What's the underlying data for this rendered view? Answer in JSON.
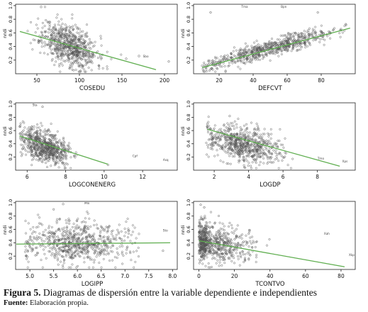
{
  "figure": {
    "caption_label": "Figura 5.",
    "caption_text": " Diagramas de dispersión entre la variable dependiente e independientes",
    "source_label": "Fuente:",
    "source_text": " Elaboración propia."
  },
  "colors": {
    "points": "#555555",
    "trend": "#5fae4f",
    "axis": "#222222",
    "text": "#111111"
  },
  "chart_data": [
    {
      "type": "scatter",
      "xlabel": "COSEDU",
      "ylabel": "nndi",
      "xlim": [
        25,
        215
      ],
      "ylim": [
        0,
        1.02
      ],
      "xticks": [
        50,
        100,
        150,
        200
      ],
      "yticks": [
        0.2,
        0.4,
        0.6,
        0.8,
        1.0
      ],
      "cloud": {
        "cx": 88,
        "sx": 16,
        "cy": 0.42,
        "sy": 0.15,
        "slope": -0.0045,
        "n": 700,
        "xmin": 30,
        "xmax": 150,
        "seed": 11
      },
      "trend": {
        "x": [
          30,
          190
        ],
        "y": [
          0.62,
          0.06
        ]
      },
      "outliers": [
        {
          "x": 205,
          "y": 0.18,
          "label": "Dhx"
        },
        {
          "x": 155,
          "y": 0.22,
          "label": ""
        },
        {
          "x": 170,
          "y": 0.26,
          "label": ""
        },
        {
          "x": 55,
          "y": 0.98,
          "label": ""
        }
      ],
      "labeled_points": [
        {
          "x": 178,
          "y": 0.24,
          "label": "Sbo"
        }
      ]
    },
    {
      "type": "scatter",
      "xlabel": "DEFCVT",
      "ylabel": "nndi",
      "xlim": [
        5,
        100
      ],
      "ylim": [
        0,
        1.02
      ],
      "xticks": [
        20,
        40,
        60,
        80
      ],
      "yticks": [
        0.2,
        0.4,
        0.6,
        0.8,
        1.0
      ],
      "cloud": {
        "cx": 50,
        "sx": 20,
        "cy": 0.37,
        "sy": 0.06,
        "slope": 0.0068,
        "n": 700,
        "xmin": 10,
        "xmax": 95,
        "seed": 23
      },
      "trend": {
        "x": [
          10,
          97
        ],
        "y": [
          0.09,
          0.67
        ]
      },
      "outliers": [
        {
          "x": 78,
          "y": 0.9,
          "label": ""
        },
        {
          "x": 15,
          "y": 0.9,
          "label": ""
        }
      ],
      "labeled_points": [
        {
          "x": 35,
          "y": 0.97,
          "label": "Tma"
        },
        {
          "x": 58,
          "y": 0.97,
          "label": "Bpn"
        }
      ]
    },
    {
      "type": "scatter",
      "xlabel": "LOGCONENERG",
      "ylabel": "nndi",
      "xlim": [
        5.4,
        13.8
      ],
      "ylim": [
        0,
        1.02
      ],
      "xticks": [
        6,
        8,
        10,
        12
      ],
      "yticks": [
        0.2,
        0.4,
        0.6,
        0.8,
        1.0
      ],
      "cloud": {
        "cx": 6.9,
        "sx": 0.6,
        "cy": 0.37,
        "sy": 0.12,
        "slope": -0.09,
        "n": 700,
        "xmin": 5.6,
        "xmax": 9.8,
        "seed": 37
      },
      "trend": {
        "x": [
          5.6,
          10.2
        ],
        "y": [
          0.52,
          0.09
        ]
      },
      "outliers": [
        {
          "x": 10.2,
          "y": 0.08,
          "label": ""
        },
        {
          "x": 6.8,
          "y": 0.96,
          "label": ""
        }
      ],
      "labeled_points": [
        {
          "x": 11.6,
          "y": 0.2,
          "label": "Cpf"
        },
        {
          "x": 13.2,
          "y": 0.14,
          "label": "Asq"
        },
        {
          "x": 6.4,
          "y": 0.97,
          "label": "Sta"
        }
      ]
    },
    {
      "type": "scatter",
      "xlabel": "LOGDP",
      "ylabel": "nndi",
      "xlim": [
        0.8,
        10.2
      ],
      "ylim": [
        0,
        1.02
      ],
      "xticks": [
        2,
        4,
        6,
        8
      ],
      "yticks": [
        0.2,
        0.4,
        0.6,
        0.8,
        1.0
      ],
      "cloud": {
        "cx": 3.8,
        "sx": 1.1,
        "cy": 0.38,
        "sy": 0.13,
        "slope": -0.05,
        "n": 700,
        "xmin": 1.5,
        "xmax": 8,
        "seed": 53
      },
      "trend": {
        "x": [
          1.6,
          9.3
        ],
        "y": [
          0.62,
          0.06
        ]
      },
      "outliers": [
        {
          "x": 2.9,
          "y": 0.82,
          "label": ""
        },
        {
          "x": 1.6,
          "y": 0.7,
          "label": ""
        }
      ],
      "labeled_points": [
        {
          "x": 8.2,
          "y": 0.16,
          "label": "Tmo"
        },
        {
          "x": 9.6,
          "y": 0.12,
          "label": "Xps"
        }
      ]
    },
    {
      "type": "scatter",
      "xlabel": "LOGIPP",
      "ylabel": "nndi",
      "xlim": [
        4.7,
        8.1
      ],
      "ylim": [
        0,
        1.02
      ],
      "xticks": [
        5.0,
        5.5,
        6.0,
        6.5,
        7.0,
        7.5,
        8.0
      ],
      "yticks": [
        0.2,
        0.4,
        0.6,
        0.8,
        1.0
      ],
      "cloud": {
        "cx": 6.0,
        "sx": 0.55,
        "cy": 0.4,
        "sy": 0.16,
        "slope": 0.0,
        "n": 700,
        "xmin": 4.9,
        "xmax": 7.4,
        "seed": 71
      },
      "trend": {
        "x": [
          4.7,
          7.95
        ],
        "y": [
          0.38,
          0.4
        ]
      },
      "outliers": [
        {
          "x": 5.5,
          "y": 0.9,
          "label": ""
        },
        {
          "x": 7.8,
          "y": 0.28,
          "label": ""
        },
        {
          "x": 5.7,
          "y": 0.98,
          "label": ""
        }
      ],
      "labeled_points": [
        {
          "x": 6.2,
          "y": 0.98,
          "label": "Mlx"
        },
        {
          "x": 7.85,
          "y": 0.57,
          "label": "Sto"
        }
      ]
    },
    {
      "type": "scatter",
      "xlabel": "TCONTVO",
      "ylabel": "nndi",
      "xlim": [
        -3,
        88
      ],
      "ylim": [
        0,
        1.02
      ],
      "xticks": [
        0,
        20,
        40,
        60,
        80
      ],
      "yticks": [
        0.2,
        0.4,
        0.6,
        0.8,
        1.0
      ],
      "cloud": {
        "cx": 6,
        "sx": 11,
        "cy": 0.4,
        "sy": 0.14,
        "slope": -0.004,
        "n": 700,
        "xmin": 0,
        "xmax": 75,
        "seed": 97
      },
      "trend": {
        "x": [
          0,
          82
        ],
        "y": [
          0.43,
          0.04
        ]
      },
      "outliers": [
        {
          "x": 1,
          "y": 0.97,
          "label": ""
        },
        {
          "x": 3,
          "y": 0.93,
          "label": ""
        },
        {
          "x": 2,
          "y": 0.75,
          "label": ""
        }
      ],
      "labeled_points": [
        {
          "x": 72,
          "y": 0.52,
          "label": "Xah"
        },
        {
          "x": 86,
          "y": 0.2,
          "label": "Xkp"
        }
      ]
    }
  ]
}
